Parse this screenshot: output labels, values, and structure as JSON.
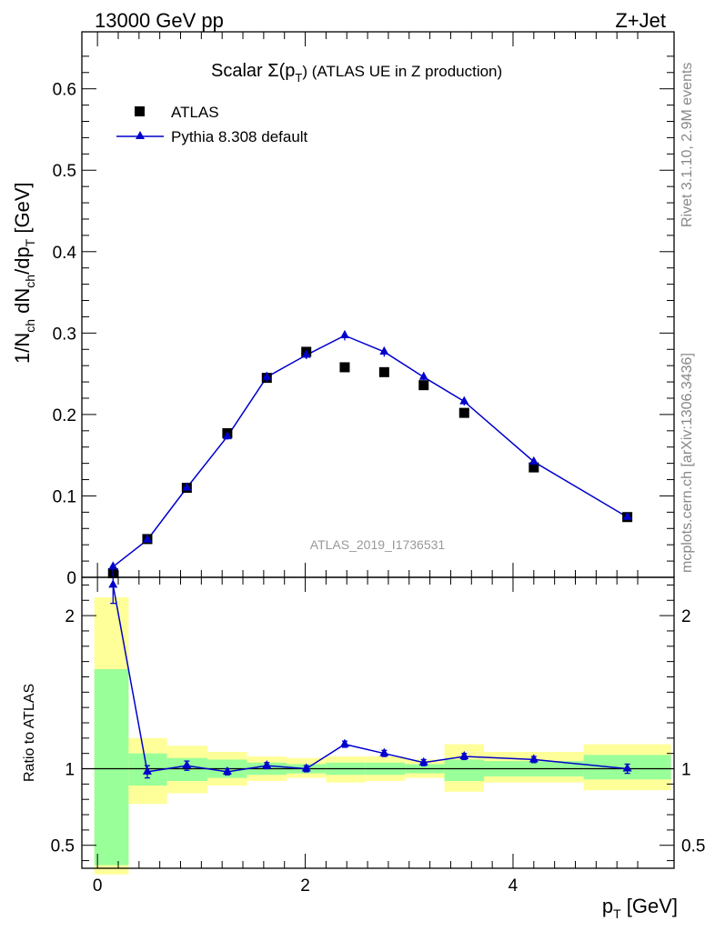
{
  "header": {
    "left": "13000 GeV pp",
    "right": "Z+Jet"
  },
  "side": {
    "rivet": "Rivet 3.1.10,  2.9M events",
    "mcplots": "mcplots.cern.ch [arXiv:1306.3436]"
  },
  "chart_data": [
    {
      "type": "scatter",
      "title_main": "Scalar Σ(p",
      "title_sub": "T",
      "title_rest": ") (ATLAS UE in Z production)",
      "ylabel": "1/N_ch dN_ch/dp_T [GeV]",
      "xlabel": "p_T [GeV]",
      "watermark": "ATLAS_2019_I1736531",
      "xlim": [
        -0.15,
        5.55
      ],
      "ylim": [
        0,
        0.67
      ],
      "yticks": [
        "0",
        "0.1",
        "0.2",
        "0.3",
        "0.4",
        "0.5",
        "0.6"
      ],
      "xticks": [
        "0",
        "2",
        "4"
      ],
      "legend": {
        "position": "top-left",
        "data_label": "ATLAS",
        "mc_label": "Pythia 8.308 default"
      },
      "colors": {
        "data": "#000000",
        "mc": "#0000cc"
      },
      "series": [
        {
          "name": "ATLAS",
          "x": [
            0.15,
            0.48,
            0.86,
            1.25,
            1.63,
            2.01,
            2.38,
            2.76,
            3.14,
            3.53,
            4.2,
            5.1
          ],
          "y": [
            0.005,
            0.047,
            0.11,
            0.177,
            0.245,
            0.277,
            0.258,
            0.252,
            0.236,
            0.202,
            0.135,
            0.074
          ]
        },
        {
          "name": "Pythia 8.308 default",
          "x": [
            0.15,
            0.48,
            0.86,
            1.25,
            1.63,
            2.01,
            2.38,
            2.76,
            3.14,
            3.53,
            4.2,
            5.1
          ],
          "y": [
            0.013,
            0.046,
            0.11,
            0.173,
            0.246,
            0.273,
            0.297,
            0.277,
            0.246,
            0.216,
            0.142,
            0.074
          ],
          "err": [
            0.001,
            0.002,
            0.003,
            0.004,
            0.006,
            0.005,
            0.006,
            0.006,
            0.006,
            0.005,
            0.004,
            0.003
          ]
        }
      ]
    },
    {
      "type": "line",
      "ylabel": "Ratio to ATLAS",
      "ylim": [
        0.35,
        2.25
      ],
      "yticks": [
        "0.5",
        "1",
        "2"
      ],
      "xticks": [
        "0",
        "2",
        "4"
      ],
      "bins": [
        {
          "lo": -0.03,
          "hi": 0.3,
          "y1": [
            0.37,
            1.65
          ],
          "y2": [
            0.31,
            2.12
          ]
        },
        {
          "lo": 0.3,
          "hi": 0.67,
          "y1": [
            0.89,
            1.1
          ],
          "y2": [
            0.77,
            1.2
          ]
        },
        {
          "lo": 0.67,
          "hi": 1.06,
          "y1": [
            0.92,
            1.07
          ],
          "y2": [
            0.84,
            1.15
          ]
        },
        {
          "lo": 1.06,
          "hi": 1.44,
          "y1": [
            0.94,
            1.06
          ],
          "y2": [
            0.89,
            1.11
          ]
        },
        {
          "lo": 1.44,
          "hi": 1.82,
          "y1": [
            0.96,
            1.04
          ],
          "y2": [
            0.92,
            1.08
          ]
        },
        {
          "lo": 1.82,
          "hi": 2.2,
          "y1": [
            0.97,
            1.03
          ],
          "y2": [
            0.94,
            1.07
          ]
        },
        {
          "lo": 2.2,
          "hi": 2.58,
          "y1": [
            0.96,
            1.04
          ],
          "y2": [
            0.91,
            1.08
          ]
        },
        {
          "lo": 2.58,
          "hi": 2.96,
          "y1": [
            0.96,
            1.04
          ],
          "y2": [
            0.92,
            1.08
          ]
        },
        {
          "lo": 2.96,
          "hi": 3.34,
          "y1": [
            0.97,
            1.03
          ],
          "y2": [
            0.94,
            1.06
          ]
        },
        {
          "lo": 3.34,
          "hi": 3.72,
          "y1": [
            0.92,
            1.06
          ],
          "y2": [
            0.85,
            1.16
          ]
        },
        {
          "lo": 3.72,
          "hi": 4.68,
          "y1": [
            0.95,
            1.05
          ],
          "y2": [
            0.91,
            1.11
          ]
        },
        {
          "lo": 4.68,
          "hi": 5.52,
          "y1": [
            0.93,
            1.09
          ],
          "y2": [
            0.86,
            1.16
          ]
        }
      ],
      "series": [
        {
          "name": "Pythia 8.308 default",
          "x": [
            0.15,
            0.48,
            0.86,
            1.25,
            1.63,
            2.01,
            2.38,
            2.76,
            3.14,
            3.53,
            4.2,
            5.1
          ],
          "y": [
            2.2,
            0.98,
            1.02,
            0.98,
            1.02,
            1.0,
            1.16,
            1.1,
            1.04,
            1.08,
            1.06,
            1.0
          ],
          "err": [
            0.12,
            0.04,
            0.03,
            0.02,
            0.02,
            0.02,
            0.02,
            0.02,
            0.02,
            0.02,
            0.02,
            0.03
          ]
        }
      ],
      "reference": 1.0,
      "colors": {
        "band_inner": "#99ff99",
        "band_outer": "#ffff99",
        "line": "#0000cc"
      }
    }
  ]
}
